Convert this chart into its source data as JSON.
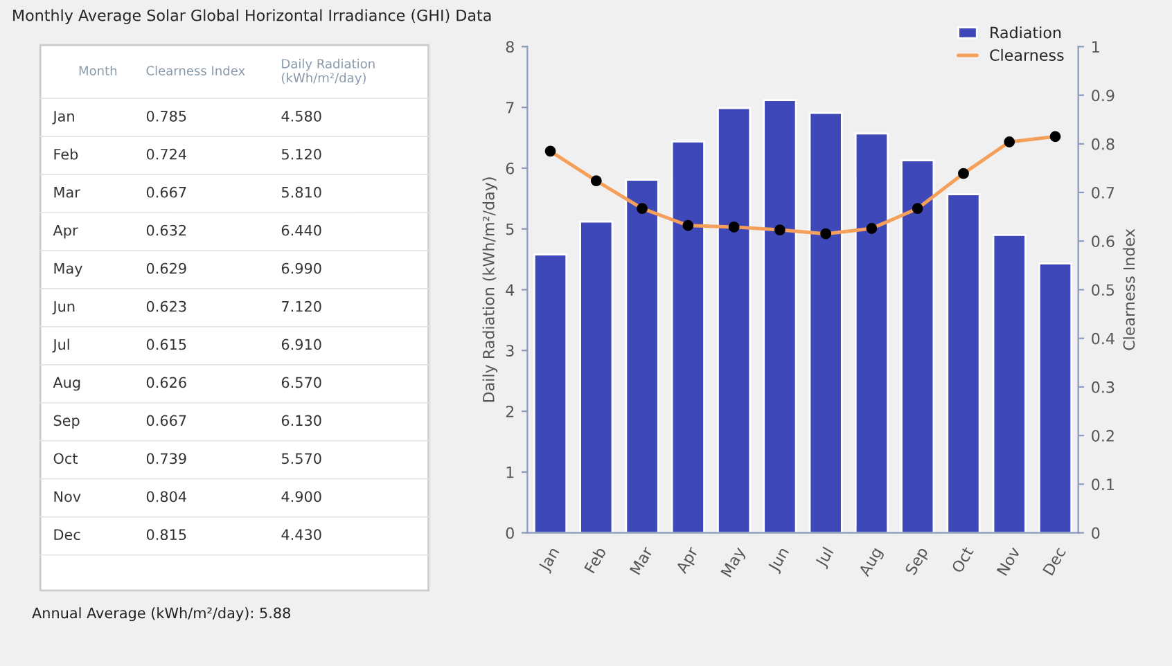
{
  "chart_data": [
    {
      "type": "other",
      "title": "Monthly Average Solar Global Horizontal Irradiance (GHI) Data",
      "annotations": [
        "Month",
        "Clearness Index",
        "Daily Radiation (kWh/m²/day)",
        "Jan",
        "0.785",
        "4.580",
        "Feb",
        "0.724",
        "5.120",
        "Mar",
        "0.667",
        "5.810",
        "Apr",
        "0.632",
        "6.440",
        "May",
        "0.629",
        "6.990",
        "Jun",
        "0.623",
        "7.120",
        "Jul",
        "0.615",
        "6.910",
        "Aug",
        "0.626",
        "6.570",
        "Sep",
        "0.667",
        "6.130",
        "Oct",
        "0.739",
        "5.570",
        "Nov",
        "0.804",
        "4.900",
        "Dec",
        "0.815",
        "4.430",
        "Annual Average (kWh/m²/day): 5.88"
      ]
    },
    {
      "type": "bar",
      "categories": [
        "Jan",
        "Feb",
        "Mar",
        "Apr",
        "May",
        "Jun",
        "Jul",
        "Aug",
        "Sep",
        "Oct",
        "Nov",
        "Dec"
      ],
      "series": [
        {
          "name": "Radiation",
          "color": "#3f48b8",
          "values": [
            4.58,
            5.12,
            5.81,
            6.44,
            6.99,
            7.12,
            6.91,
            6.57,
            6.13,
            5.57,
            4.9,
            4.43
          ]
        },
        {
          "name": "Clearness",
          "type": "line",
          "axis": "y2",
          "color": "#f5a05a",
          "marker": "circle",
          "values": [
            0.785,
            0.724,
            0.667,
            0.632,
            0.629,
            0.623,
            0.615,
            0.626,
            0.667,
            0.739,
            0.804,
            0.815
          ]
        }
      ],
      "ylabel": "Daily Radiation (kWh/m²/day)",
      "y2label": "Clearness Index",
      "ylim": [
        0,
        8
      ],
      "yticks": [
        0,
        1,
        2,
        3,
        4,
        5,
        6,
        7,
        8
      ],
      "y2lim": [
        0,
        1
      ],
      "y2ticks": [
        0,
        0.1,
        0.2,
        0.3,
        0.4,
        0.5,
        0.6,
        0.7,
        0.8,
        0.9,
        1
      ],
      "legend": "top right"
    }
  ]
}
